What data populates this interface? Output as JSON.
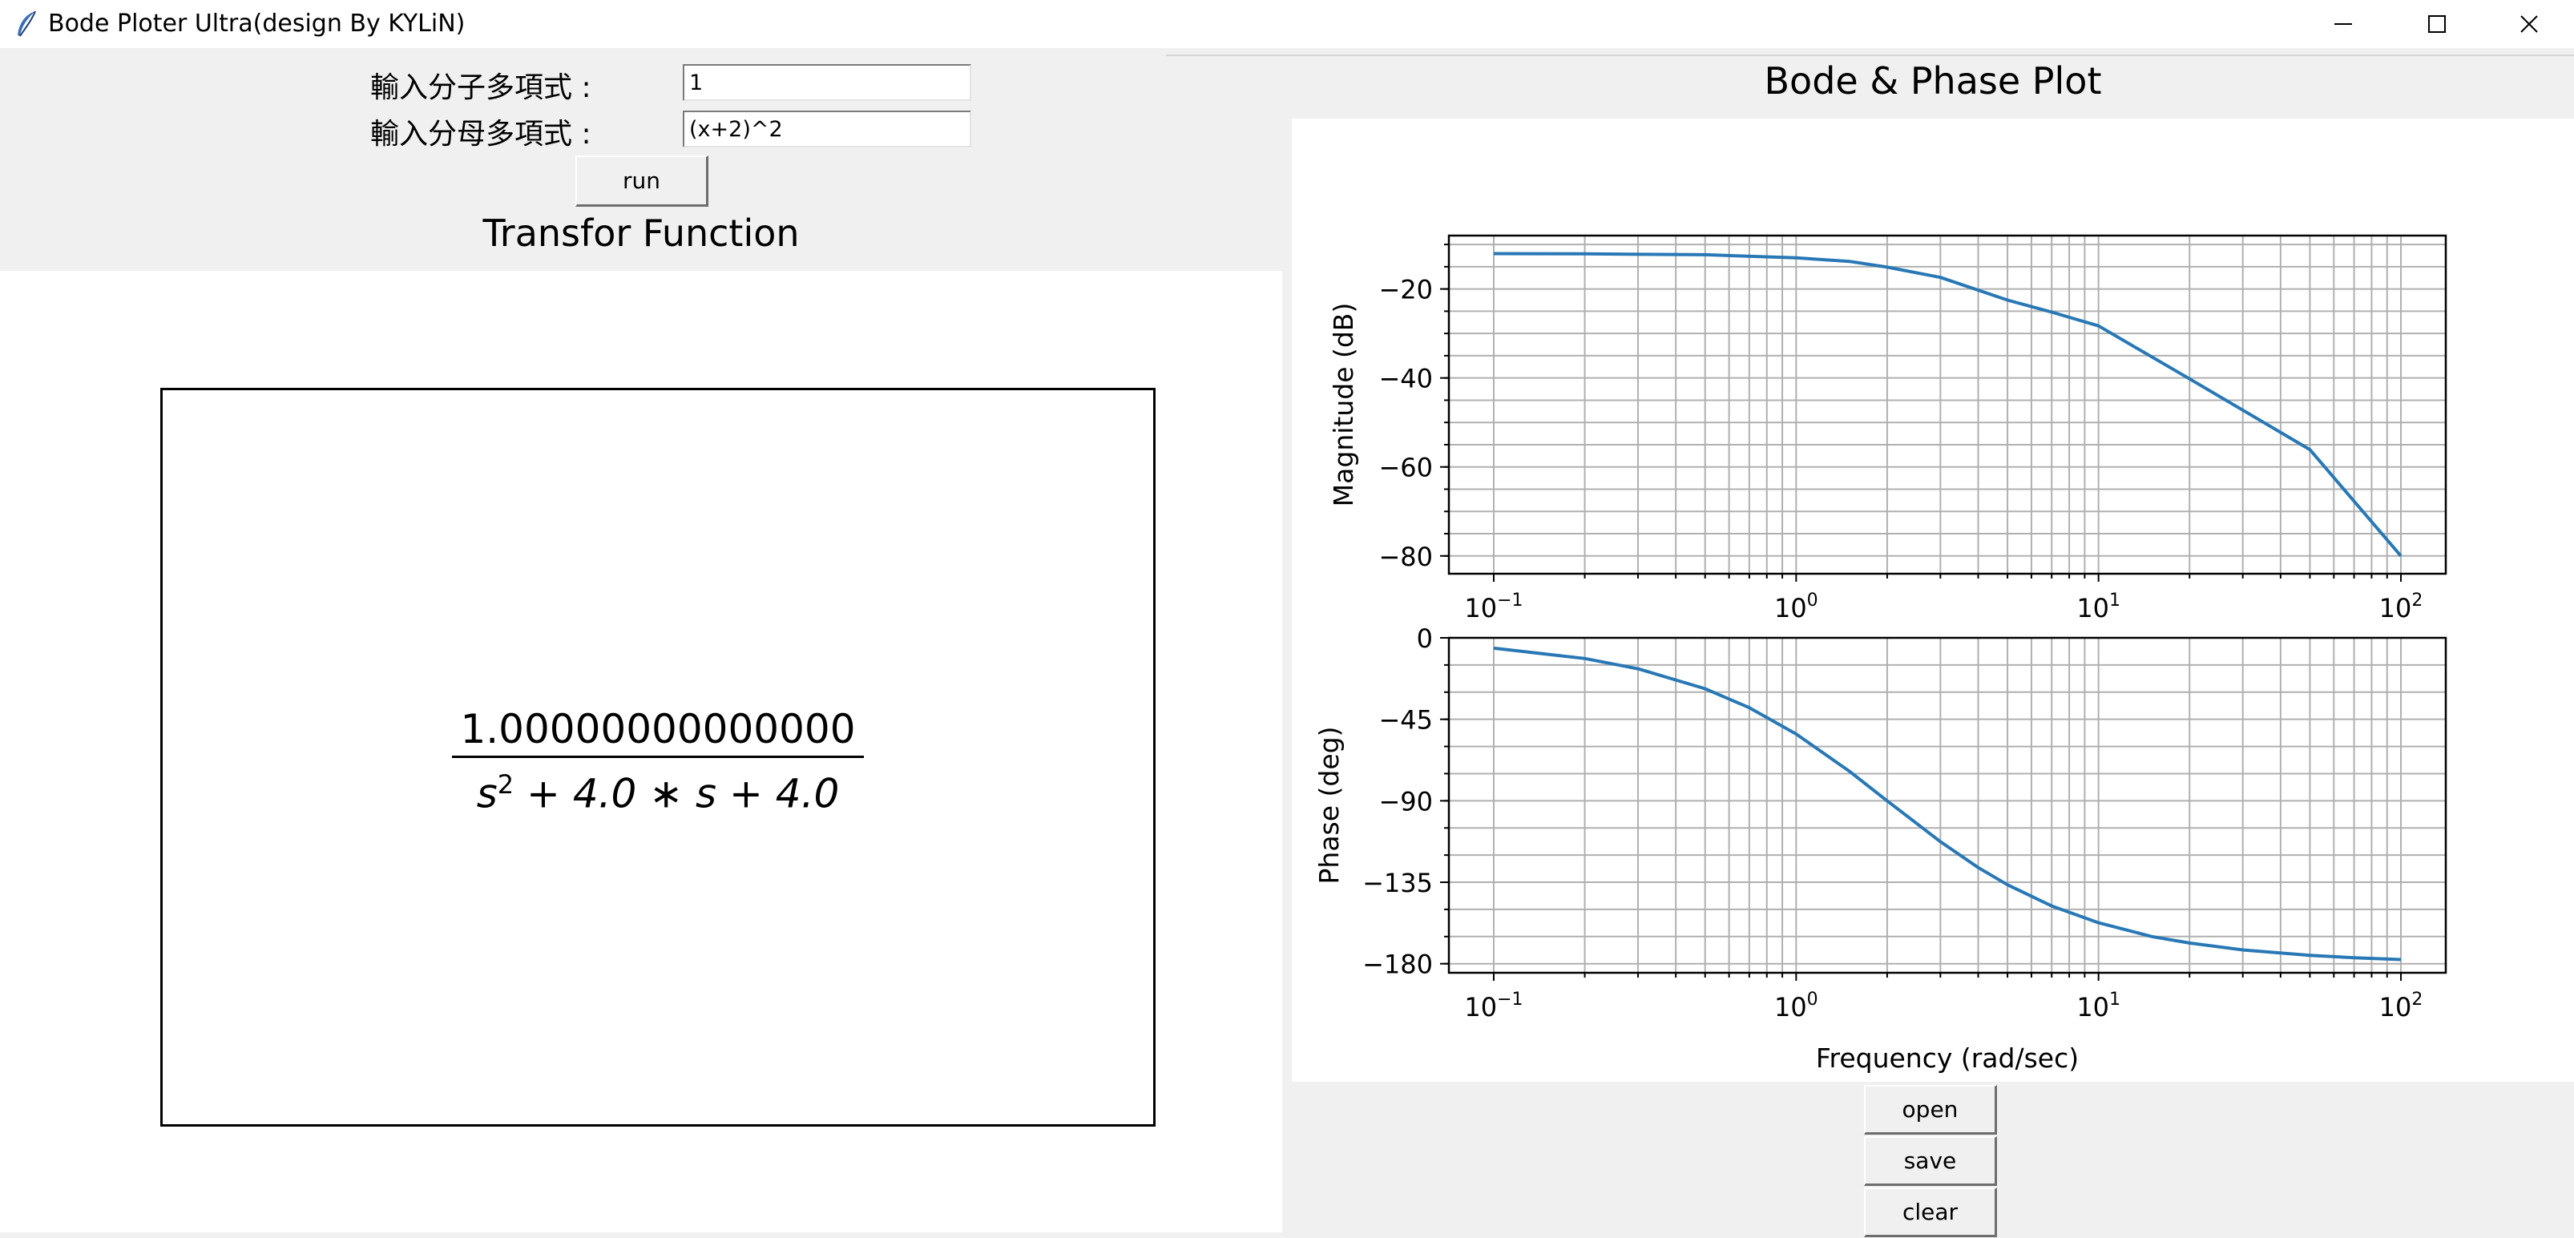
{
  "window": {
    "title": "Bode Ploter Ultra(design By KYLiN)",
    "controls": {
      "minimize_icon": "minimize-icon",
      "maximize_icon": "maximize-icon",
      "close_icon": "close-icon"
    }
  },
  "inputs": {
    "numerator_label": "輸入分子多項式 :",
    "numerator_value": "1",
    "denominator_label": "輸入分母多項式 :",
    "denominator_value": "(x+2)^2",
    "run_label": "run"
  },
  "transfer_function": {
    "title": "Transfor Function",
    "numerator": "1.00000000000000",
    "denominator_s": "s",
    "denominator_exp": "2",
    "denominator_rest": " + 4.0 ∗ s + 4.0"
  },
  "plot_title": "Bode & Phase Plot",
  "chart_data": [
    {
      "type": "line",
      "xscale": "log",
      "xlim": [
        0.1,
        100
      ],
      "ylim": [
        -84,
        -8
      ],
      "yticks": [
        -20,
        -40,
        -60,
        -80
      ],
      "xticks": [
        "10",
        "10",
        "10",
        "10"
      ],
      "xtick_exps": [
        "−1",
        "0",
        "1",
        "2"
      ],
      "ylabel": "Magnitude (dB)",
      "grid": true,
      "series": [
        {
          "x": [
            0.1,
            0.2,
            0.5,
            1,
            1.5,
            2,
            3,
            5,
            7,
            10,
            20,
            50,
            100
          ],
          "y": [
            -12.05,
            -12.1,
            -12.3,
            -13.0,
            -13.8,
            -15.1,
            -17.4,
            -22.5,
            -25.2,
            -28.3,
            -40.2,
            -56.1,
            -80.0
          ]
        }
      ],
      "color": "#2878b5"
    },
    {
      "type": "line",
      "xscale": "log",
      "xlim": [
        0.1,
        100
      ],
      "ylim": [
        -185,
        0
      ],
      "yticks": [
        0,
        -45,
        -90,
        -135,
        -180
      ],
      "xticks": [
        "10",
        "10",
        "10",
        "10"
      ],
      "xtick_exps": [
        "−1",
        "0",
        "1",
        "2"
      ],
      "ylabel": "Phase (deg)",
      "xlabel": "Frequency (rad/sec)",
      "grid": true,
      "series": [
        {
          "x": [
            0.1,
            0.2,
            0.3,
            0.5,
            0.7,
            1,
            1.5,
            2,
            3,
            4,
            5,
            7,
            10,
            15,
            20,
            30,
            50,
            70,
            100
          ],
          "y": [
            -5.7,
            -11.4,
            -17.1,
            -28.1,
            -38.6,
            -53.1,
            -73.7,
            -90,
            -112.6,
            -126.9,
            -136.4,
            -148.1,
            -157.4,
            -165.0,
            -168.6,
            -172.4,
            -175.4,
            -176.7,
            -177.7
          ]
        }
      ],
      "color": "#2878b5"
    }
  ],
  "buttons": {
    "open_label": "open",
    "save_label": "save",
    "clear_label": "clear"
  }
}
